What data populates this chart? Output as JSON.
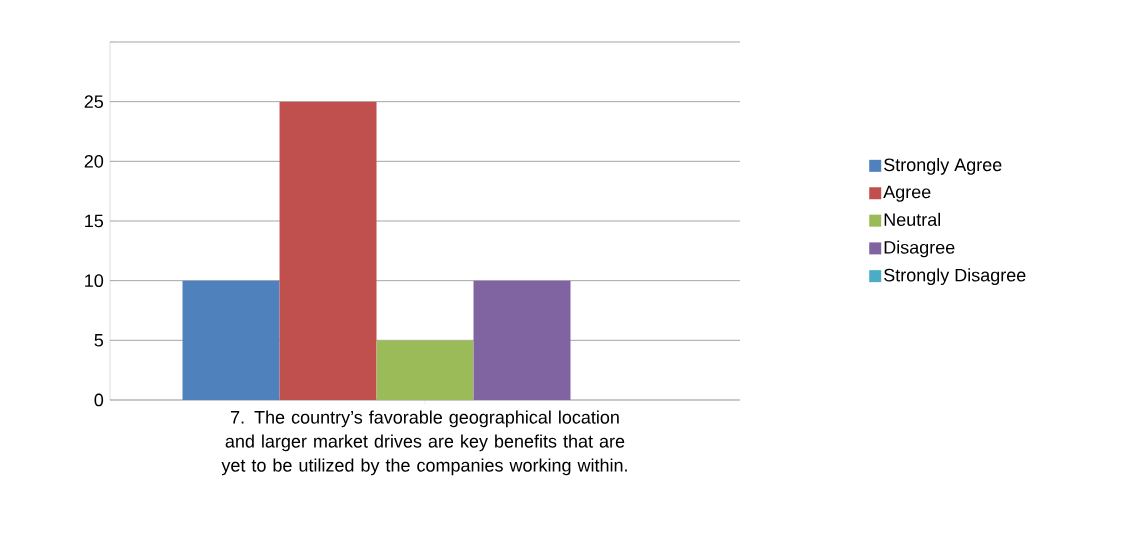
{
  "chart_data": {
    "type": "bar",
    "categories": [
      "7. The country’s favorable geographical location and larger market drives are key benefits that are yet to be utilized by the companies working within."
    ],
    "series": [
      {
        "name": "Strongly Agree",
        "color": "#4f81bd",
        "values": [
          10
        ]
      },
      {
        "name": "Agree",
        "color": "#c0504d",
        "values": [
          25
        ]
      },
      {
        "name": "Neutral",
        "color": "#9bbb59",
        "values": [
          5
        ]
      },
      {
        "name": "Disagree",
        "color": "#8064a2",
        "values": [
          10
        ]
      },
      {
        "name": "Strongly Disagree",
        "color": "#4bacc6",
        "values": [
          0
        ]
      }
    ],
    "ylim": [
      0,
      30
    ],
    "yticks": [
      0,
      5,
      10,
      15,
      20,
      25,
      {
        "value": 30,
        "label": null
      }
    ],
    "grid": "y",
    "legend": "right"
  }
}
